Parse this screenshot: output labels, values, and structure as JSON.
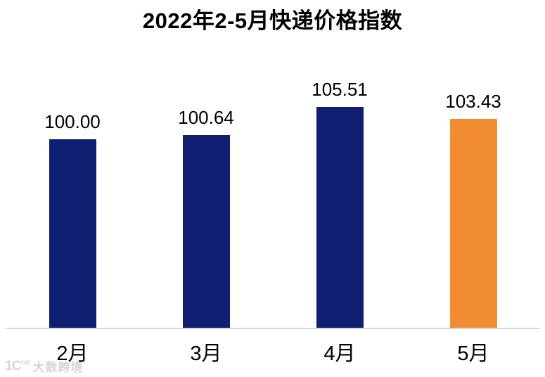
{
  "chart_data": {
    "type": "bar",
    "title": "2022年2-5月快递价格指数",
    "categories": [
      "2月",
      "3月",
      "4月",
      "5月"
    ],
    "values": [
      100.0,
      100.64,
      105.51,
      103.43
    ],
    "value_labels": [
      "100.00",
      "100.64",
      "105.51",
      "103.43"
    ],
    "series": [
      {
        "name": "快递价格指数",
        "values": [
          100.0,
          100.64,
          105.51,
          103.43
        ]
      }
    ],
    "bar_colors": [
      "#111F73",
      "#111F73",
      "#111F73",
      "#F28C33"
    ],
    "highlight_color": "#F28C33",
    "primary_color": "#111F73",
    "xlabel": "",
    "ylabel": "",
    "ylim": [
      68,
      110
    ],
    "grid": false,
    "legend": false,
    "axis_line_color": "#D9D9D9",
    "label_color": "#000000",
    "background": "#ffffff"
  },
  "watermark": {
    "logo_text": "1C°°",
    "brand_text": "大数跨境",
    "color": "#D6D6D6"
  }
}
